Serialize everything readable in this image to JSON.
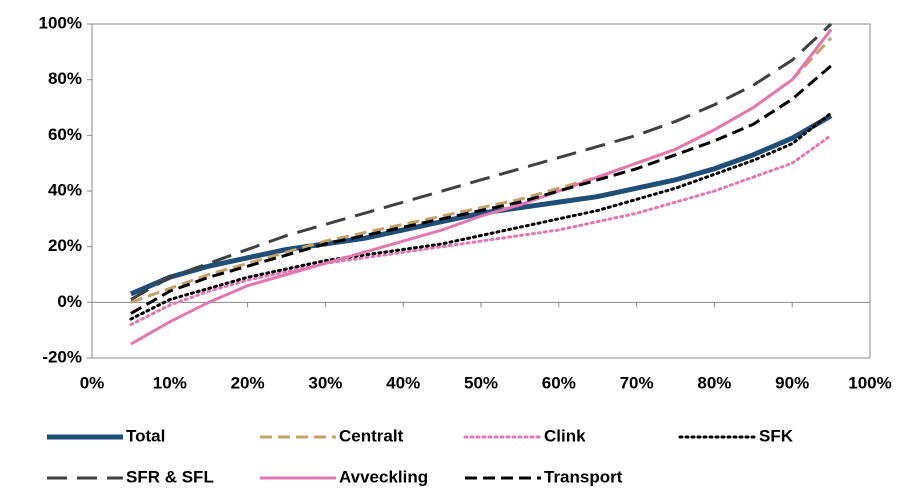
{
  "chart_data": {
    "type": "line",
    "x": [
      5,
      10,
      15,
      20,
      25,
      30,
      35,
      40,
      45,
      50,
      55,
      60,
      65,
      70,
      75,
      80,
      85,
      90,
      95
    ],
    "xlim": [
      0,
      100
    ],
    "xticks": [
      {
        "value": 0,
        "label": "0%"
      },
      {
        "value": 10,
        "label": "10%"
      },
      {
        "value": 20,
        "label": "20%"
      },
      {
        "value": 30,
        "label": "30%"
      },
      {
        "value": 40,
        "label": "40%"
      },
      {
        "value": 50,
        "label": "50%"
      },
      {
        "value": 60,
        "label": "60%"
      },
      {
        "value": 70,
        "label": "70%"
      },
      {
        "value": 80,
        "label": "80%"
      },
      {
        "value": 90,
        "label": "90%"
      },
      {
        "value": 100,
        "label": "100%"
      }
    ],
    "ylim": [
      -20,
      100
    ],
    "yticks": [
      {
        "value": -20,
        "label": "-20%"
      },
      {
        "value": 0,
        "label": "0%"
      },
      {
        "value": 20,
        "label": "20%"
      },
      {
        "value": 40,
        "label": "40%"
      },
      {
        "value": 60,
        "label": "60%"
      },
      {
        "value": 80,
        "label": "80%"
      },
      {
        "value": 100,
        "label": "100%"
      }
    ],
    "legend": "bottom",
    "series": [
      {
        "name": "Total",
        "color": "#1f4e79",
        "dash": "solid",
        "linewidth": 5,
        "values": [
          3,
          9,
          13,
          16,
          19,
          21,
          23,
          26,
          29,
          32,
          34,
          36,
          38,
          41,
          44,
          48,
          53,
          59,
          67
        ]
      },
      {
        "name": "Centralt",
        "color": "#c4a265",
        "dash": "dashed",
        "linewidth": 3,
        "values": [
          0,
          5,
          10,
          14,
          18,
          22,
          25,
          28,
          31,
          34,
          37,
          41,
          45,
          50,
          55,
          62,
          70,
          80,
          95
        ]
      },
      {
        "name": "Clink",
        "color": "#e377b0",
        "dash": "dotted",
        "linewidth": 3,
        "values": [
          -8,
          -1,
          4,
          8,
          11,
          14,
          16,
          18,
          20,
          22,
          24,
          26,
          29,
          32,
          36,
          40,
          45,
          50,
          60
        ]
      },
      {
        "name": "SFK",
        "color": "#000000",
        "dash": "dotted",
        "linewidth": 3,
        "values": [
          -6,
          1,
          5,
          9,
          12,
          15,
          17,
          19,
          21,
          24,
          27,
          30,
          33,
          37,
          41,
          46,
          51,
          57,
          68
        ]
      },
      {
        "name": "SFR & SFL",
        "color": "#404040",
        "dash": "longdash",
        "linewidth": 3,
        "values": [
          1,
          9,
          14,
          19,
          24,
          28,
          32,
          36,
          40,
          44,
          48,
          52,
          56,
          60,
          65,
          71,
          78,
          87,
          100
        ]
      },
      {
        "name": "Avveckling",
        "color": "#e377b0",
        "dash": "solid",
        "linewidth": 3,
        "values": [
          -15,
          -7,
          0,
          6,
          10,
          14,
          18,
          22,
          26,
          31,
          35,
          40,
          45,
          50,
          55,
          62,
          70,
          80,
          98
        ]
      },
      {
        "name": "Transport",
        "color": "#000000",
        "dash": "dashed",
        "linewidth": 3,
        "values": [
          -4,
          4,
          9,
          13,
          17,
          21,
          24,
          27,
          30,
          33,
          36,
          40,
          44,
          48,
          53,
          58,
          64,
          73,
          85
        ]
      }
    ]
  }
}
